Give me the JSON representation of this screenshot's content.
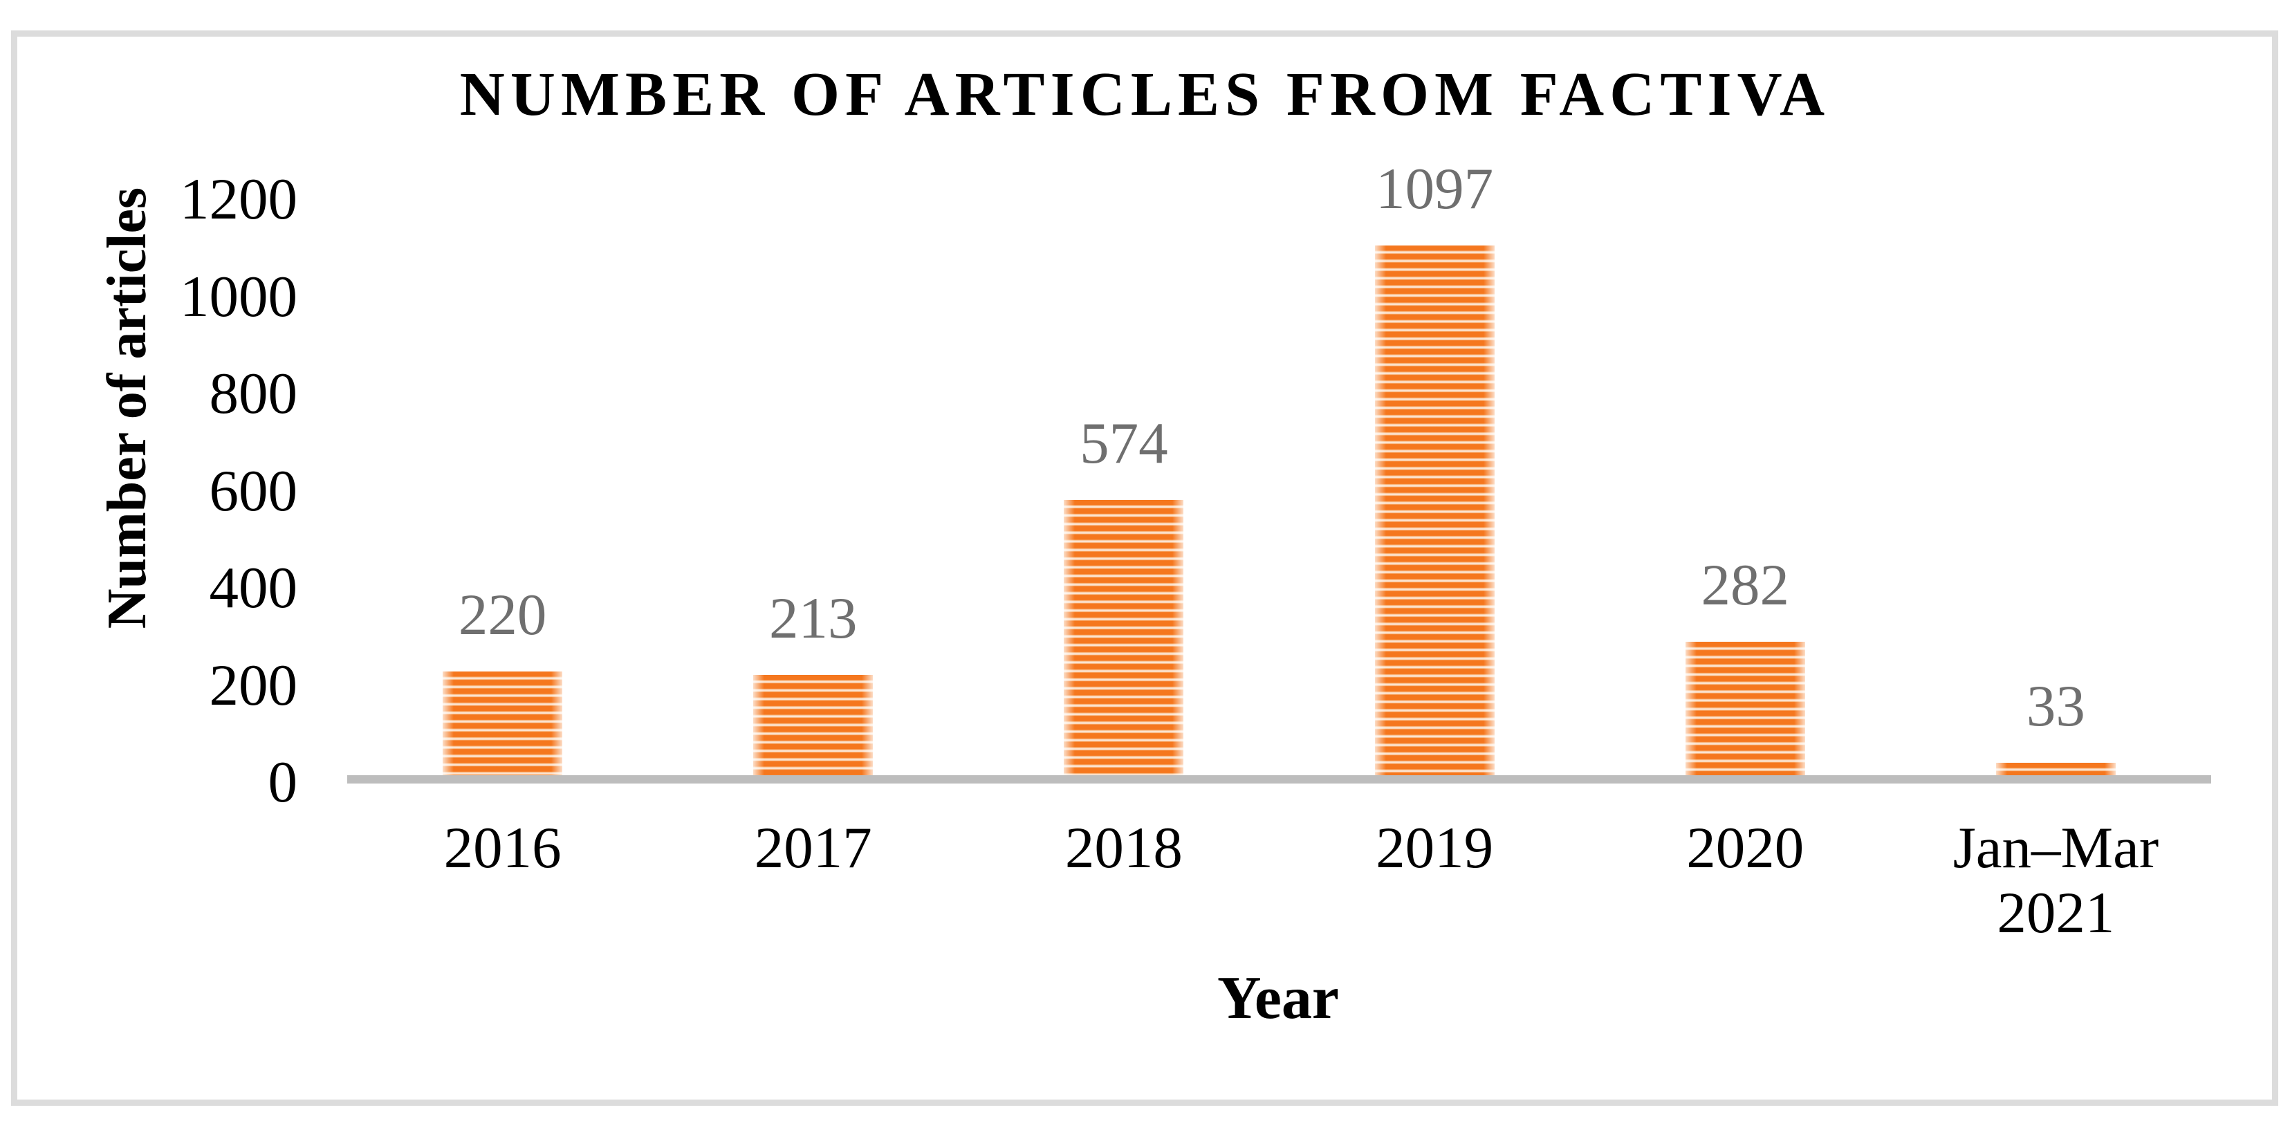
{
  "chart_data": {
    "type": "bar",
    "title": "NUMBER OF ARTICLES FROM FACTIVA",
    "xlabel": "Year",
    "ylabel": "Number of articles",
    "categories": [
      "2016",
      "2017",
      "2018",
      "2019",
      "2020",
      "Jan–Mar\n2021"
    ],
    "values": [
      220,
      213,
      574,
      1097,
      282,
      33
    ],
    "data_labels": [
      "220",
      "213",
      "574",
      "1097",
      "282",
      "33"
    ],
    "ylim": [
      0,
      1200
    ],
    "yticks": [
      0,
      200,
      400,
      600,
      800,
      1000,
      1200
    ],
    "grid": false,
    "legend": false,
    "bar_color": "#f5771e",
    "bar_pattern": "horizontal-stripes",
    "data_label_color": "#6f6f6f",
    "axis_line_color": "#bdbdbd",
    "frame_border_color": "#dcdcdc",
    "title_color": "#000000"
  }
}
